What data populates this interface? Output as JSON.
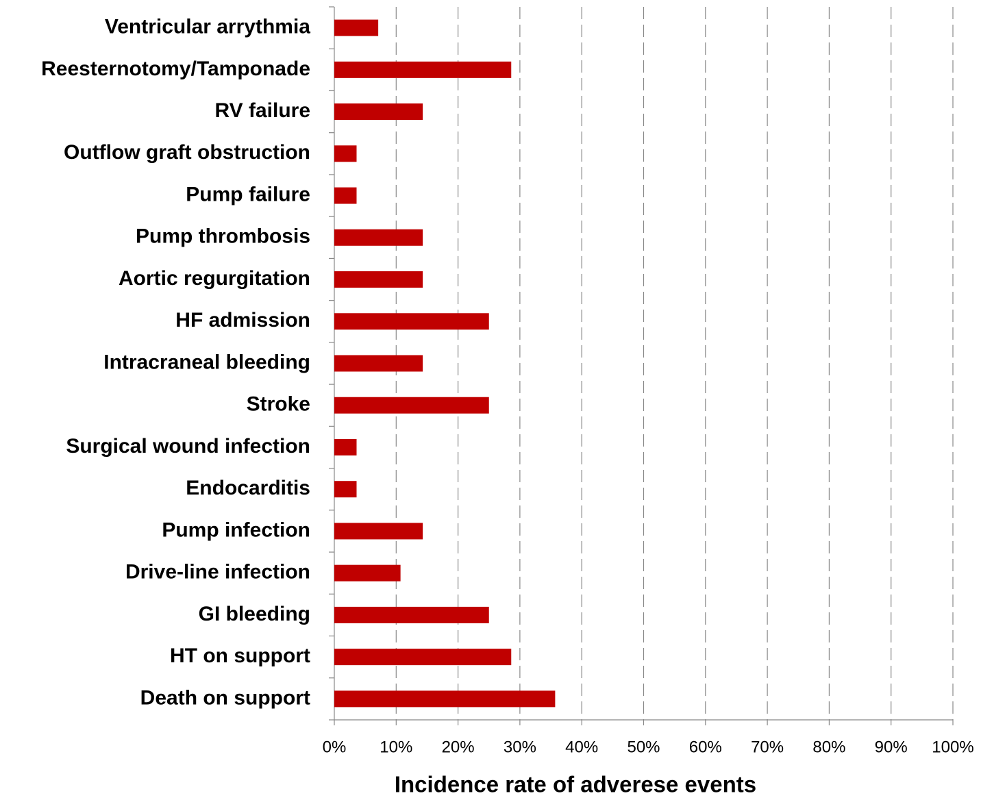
{
  "chart_data": {
    "type": "barh",
    "x_label": "Incidence rate of adverese events",
    "categories": [
      "Ventricular arrythmia",
      "Reesternotomy/Tamponade",
      "RV failure",
      "Outflow graft obstruction",
      "Pump failure",
      "Pump thrombosis",
      "Aortic regurgitation",
      "HF admission",
      "Intracraneal bleeding",
      "Stroke",
      "Surgical wound infection",
      "Endocarditis",
      "Pump infection",
      "Drive-line infection",
      "GI bleeding",
      "HT on support",
      "Death on support"
    ],
    "values": [
      7.1,
      28.6,
      14.3,
      3.6,
      3.6,
      14.3,
      14.3,
      25,
      14.3,
      25,
      3.6,
      3.6,
      14.3,
      10.7,
      25,
      28.6,
      35.7
    ],
    "color": "#c00000",
    "xlim": [
      0,
      100
    ],
    "xticks": [
      {
        "value": 0,
        "label": "0%"
      },
      {
        "value": 10,
        "label": "10%"
      },
      {
        "value": 20,
        "label": "20%"
      },
      {
        "value": 30,
        "label": "30%"
      },
      {
        "value": 40,
        "label": "40%"
      },
      {
        "value": 50,
        "label": "50%"
      },
      {
        "value": 60,
        "label": "60%"
      },
      {
        "value": 70,
        "label": "70%"
      },
      {
        "value": 80,
        "label": "80%"
      },
      {
        "value": 90,
        "label": "90%"
      },
      {
        "value": 100,
        "label": "100%"
      }
    ],
    "grid": true
  }
}
